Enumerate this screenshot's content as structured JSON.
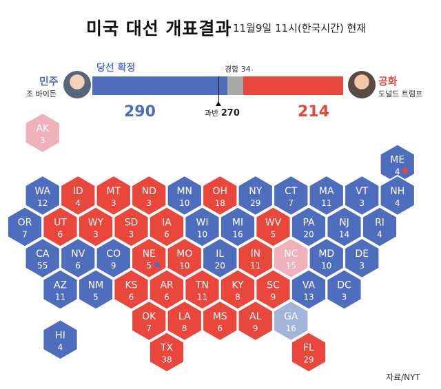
{
  "header": {
    "title": "미국 대선 개표결과",
    "subtitle": "11월9일 11시(한국시간) 현재"
  },
  "tally": {
    "dem_party": "민주",
    "dem_candidate": "조 바이든",
    "rep_party": "공화",
    "rep_candidate": "도널드 트럼프",
    "confirmed_label": "당선 확정",
    "contested_label": "경합 34",
    "majority_label": "과반",
    "majority_value": "270",
    "dem_votes": "290",
    "rep_votes": "214"
  },
  "colors": {
    "dem": "#4f6dbd",
    "rep": "#e9473b",
    "dem_lean": "#a2b4d8",
    "rep_lean": "#efb2bd",
    "contested_bar": "#a9a9a9"
  },
  "chart_data": {
    "type": "bar",
    "categories": [
      "민주",
      "경합",
      "공화"
    ],
    "values": [
      290,
      34,
      214
    ],
    "total": 538,
    "majority": 270,
    "hex_map": [
      {
        "state": "AK",
        "ev": "3",
        "status": "rep_lean",
        "col": 0.5,
        "row": 0
      },
      {
        "state": "ME",
        "ev": "4",
        "status": "dem",
        "col": 10.5,
        "row": 1,
        "marker": "rep"
      },
      {
        "state": "WA",
        "ev": "12",
        "status": "dem",
        "col": 0.5,
        "row": 2
      },
      {
        "state": "ID",
        "ev": "4",
        "status": "rep",
        "col": 1.5,
        "row": 2
      },
      {
        "state": "MT",
        "ev": "3",
        "status": "rep",
        "col": 2.5,
        "row": 2
      },
      {
        "state": "ND",
        "ev": "3",
        "status": "rep",
        "col": 3.5,
        "row": 2
      },
      {
        "state": "MN",
        "ev": "10",
        "status": "dem",
        "col": 4.5,
        "row": 2
      },
      {
        "state": "OH",
        "ev": "18",
        "status": "rep",
        "col": 5.5,
        "row": 2
      },
      {
        "state": "NY",
        "ev": "29",
        "status": "dem",
        "col": 6.5,
        "row": 2
      },
      {
        "state": "CT",
        "ev": "7",
        "status": "dem",
        "col": 7.5,
        "row": 2
      },
      {
        "state": "MA",
        "ev": "11",
        "status": "dem",
        "col": 8.5,
        "row": 2
      },
      {
        "state": "VT",
        "ev": "3",
        "status": "dem",
        "col": 9.5,
        "row": 2
      },
      {
        "state": "NH",
        "ev": "4",
        "status": "dem",
        "col": 10.5,
        "row": 2
      },
      {
        "state": "OR",
        "ev": "7",
        "status": "dem",
        "col": 0,
        "row": 3
      },
      {
        "state": "UT",
        "ev": "6",
        "status": "rep",
        "col": 1,
        "row": 3
      },
      {
        "state": "WY",
        "ev": "3",
        "status": "rep",
        "col": 2,
        "row": 3
      },
      {
        "state": "SD",
        "ev": "3",
        "status": "rep",
        "col": 3,
        "row": 3
      },
      {
        "state": "IA",
        "ev": "6",
        "status": "rep",
        "col": 4,
        "row": 3
      },
      {
        "state": "WI",
        "ev": "10",
        "status": "dem",
        "col": 5,
        "row": 3
      },
      {
        "state": "MI",
        "ev": "16",
        "status": "dem",
        "col": 6,
        "row": 3
      },
      {
        "state": "WV",
        "ev": "5",
        "status": "rep",
        "col": 7,
        "row": 3
      },
      {
        "state": "PA",
        "ev": "20",
        "status": "dem",
        "col": 8,
        "row": 3
      },
      {
        "state": "NJ",
        "ev": "14",
        "status": "dem",
        "col": 9,
        "row": 3
      },
      {
        "state": "RI",
        "ev": "4",
        "status": "dem",
        "col": 10,
        "row": 3
      },
      {
        "state": "CA",
        "ev": "55",
        "status": "dem",
        "col": 0.5,
        "row": 4
      },
      {
        "state": "NV",
        "ev": "6",
        "status": "dem",
        "col": 1.5,
        "row": 4
      },
      {
        "state": "CO",
        "ev": "9",
        "status": "dem",
        "col": 2.5,
        "row": 4
      },
      {
        "state": "NE",
        "ev": "5",
        "status": "rep",
        "col": 3.5,
        "row": 4,
        "marker": "dem"
      },
      {
        "state": "MO",
        "ev": "10",
        "status": "rep",
        "col": 4.5,
        "row": 4
      },
      {
        "state": "IL",
        "ev": "20",
        "status": "dem",
        "col": 5.5,
        "row": 4
      },
      {
        "state": "IN",
        "ev": "11",
        "status": "rep",
        "col": 6.5,
        "row": 4
      },
      {
        "state": "NC",
        "ev": "15",
        "status": "rep_lean",
        "col": 7.5,
        "row": 4
      },
      {
        "state": "MD",
        "ev": "10",
        "status": "dem",
        "col": 8.5,
        "row": 4
      },
      {
        "state": "DE",
        "ev": "3",
        "status": "dem",
        "col": 9.5,
        "row": 4
      },
      {
        "state": "AZ",
        "ev": "11",
        "status": "dem",
        "col": 1,
        "row": 5
      },
      {
        "state": "NM",
        "ev": "5",
        "status": "dem",
        "col": 2,
        "row": 5
      },
      {
        "state": "KS",
        "ev": "6",
        "status": "rep",
        "col": 3,
        "row": 5
      },
      {
        "state": "AR",
        "ev": "6",
        "status": "rep",
        "col": 4,
        "row": 5
      },
      {
        "state": "TN",
        "ev": "11",
        "status": "rep",
        "col": 5,
        "row": 5
      },
      {
        "state": "KY",
        "ev": "8",
        "status": "rep",
        "col": 6,
        "row": 5
      },
      {
        "state": "SC",
        "ev": "9",
        "status": "rep",
        "col": 7,
        "row": 5
      },
      {
        "state": "VA",
        "ev": "13",
        "status": "dem",
        "col": 8,
        "row": 5
      },
      {
        "state": "DC",
        "ev": "3",
        "status": "dem",
        "col": 9,
        "row": 5
      },
      {
        "state": "OK",
        "ev": "7",
        "status": "rep",
        "col": 3.5,
        "row": 6
      },
      {
        "state": "LA",
        "ev": "8",
        "status": "rep",
        "col": 4.5,
        "row": 6
      },
      {
        "state": "MS",
        "ev": "6",
        "status": "rep",
        "col": 5.5,
        "row": 6
      },
      {
        "state": "AL",
        "ev": "9",
        "status": "rep",
        "col": 6.5,
        "row": 6
      },
      {
        "state": "GA",
        "ev": "16",
        "status": "dem_lean",
        "col": 7.5,
        "row": 6
      },
      {
        "state": "HI",
        "ev": "4",
        "status": "dem",
        "col": 1,
        "row": 6.6
      },
      {
        "state": "TX",
        "ev": "38",
        "status": "rep",
        "col": 4,
        "row": 7
      },
      {
        "state": "FL",
        "ev": "29",
        "status": "rep",
        "col": 8,
        "row": 7
      }
    ]
  },
  "footer": {
    "source": "자료/NYT"
  }
}
